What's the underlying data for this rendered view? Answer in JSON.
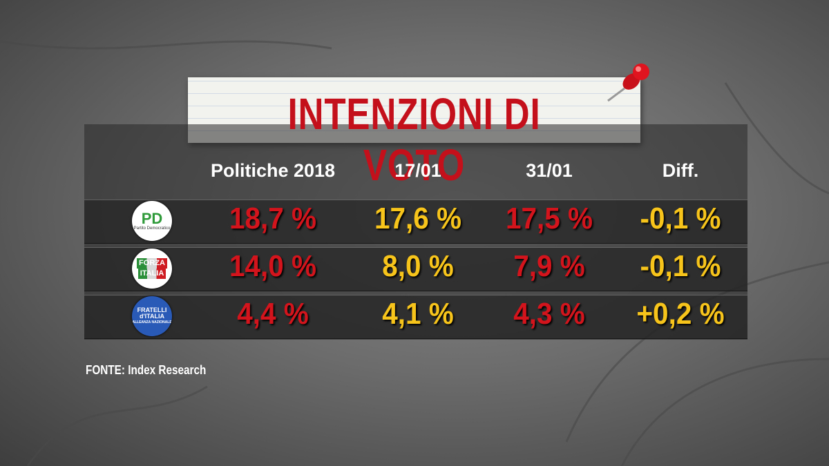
{
  "title": "INTENZIONI DI VOTO",
  "table": {
    "header": [
      "Politiche 2018",
      "17/01",
      "31/01",
      "Diff."
    ],
    "rows": [
      {
        "logo": [
          "PD",
          "Partito Democratico"
        ],
        "cells": [
          "18,7 %",
          "17,6 %",
          "17,5 %",
          "-0,1 %"
        ]
      },
      {
        "logo": [
          "FORZA",
          "ITALIA"
        ],
        "cells": [
          "14,0 %",
          "8,0 %",
          "7,9 %",
          "-0,1 %"
        ]
      },
      {
        "logo": [
          "FRATELLI",
          "d'ITALIA",
          "ALLEANZA NAZIONALE"
        ],
        "cells": [
          "4,4 %",
          "4,1 %",
          "4,3 %",
          "+0,2 %"
        ]
      }
    ]
  },
  "source": "FONTE:  Index Research"
}
